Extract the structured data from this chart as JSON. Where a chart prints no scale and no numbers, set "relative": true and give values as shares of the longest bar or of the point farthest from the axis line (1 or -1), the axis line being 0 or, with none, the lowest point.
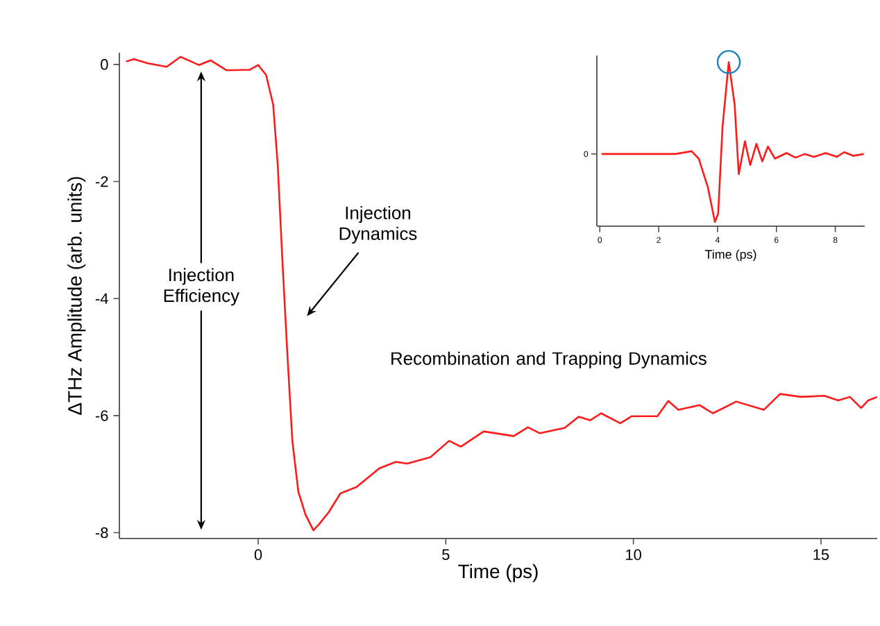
{
  "chart_data": [
    {
      "type": "line",
      "xlabel": "Time (ps)",
      "ylabel": "ΔTHz Amplitude (arb. units)",
      "xlim": [
        -3.7,
        16.5
      ],
      "ylim": [
        -8.1,
        0.2
      ],
      "xticks": [
        0,
        5,
        10,
        15
      ],
      "yticks": [
        -8,
        -6,
        -4,
        -2,
        0
      ],
      "grid": false,
      "annotations": [
        "Injection Efficiency",
        "Injection Dynamics",
        "Recombination and Trapping Dynamics"
      ],
      "series": [
        {
          "color": "#ff1a1a",
          "x": [
            -3.52,
            -3.31,
            -2.94,
            -2.44,
            -2.07,
            -1.58,
            -1.27,
            -0.84,
            -0.22,
            0,
            0.21,
            0.4,
            0.52,
            0.64,
            0.77,
            0.91,
            1.07,
            1.26,
            1.47,
            1.63,
            1.88,
            2.19,
            2.62,
            3.23,
            3.67,
            3.97,
            4.59,
            5.09,
            5.4,
            6.01,
            6.81,
            7.19,
            7.5,
            8.17,
            8.54,
            8.85,
            9.14,
            9.65,
            9.96,
            10.64,
            10.93,
            11.2,
            11.76,
            12.12,
            12.74,
            13.48,
            13.91,
            14.47,
            15.09,
            15.46,
            15.77,
            16.07,
            16.26,
            16.5
          ],
          "values": [
            0.05,
            0.09,
            0.02,
            -0.04,
            0.13,
            -0.01,
            0.07,
            -0.1,
            -0.09,
            -0.01,
            -0.18,
            -0.69,
            -1.71,
            -3.29,
            -4.86,
            -6.43,
            -7.3,
            -7.69,
            -7.96,
            -7.85,
            -7.65,
            -7.33,
            -7.22,
            -6.9,
            -6.79,
            -6.82,
            -6.71,
            -6.43,
            -6.53,
            -6.27,
            -6.35,
            -6.2,
            -6.3,
            -6.21,
            -6.02,
            -6.08,
            -5.96,
            -6.13,
            -6.01,
            -6.01,
            -5.75,
            -5.9,
            -5.82,
            -5.96,
            -5.76,
            -5.9,
            -5.63,
            -5.68,
            -5.66,
            -5.74,
            -5.68,
            -5.87,
            -5.74,
            -5.68
          ]
        }
      ]
    },
    {
      "type": "line",
      "xlabel": "Time (ps)",
      "relative": true,
      "xlim": [
        -0.1,
        9
      ],
      "xticks": [
        0,
        2,
        4,
        6,
        8
      ],
      "annotations": [
        "0"
      ],
      "grid": false,
      "series": [
        {
          "color": "#ff1a1a",
          "x": [
            0.06,
            1.63,
            2.57,
            3.12,
            3.36,
            3.67,
            3.91,
            4.02,
            4.17,
            4.38,
            4.58,
            4.72,
            4.93,
            5.11,
            5.32,
            5.52,
            5.71,
            5.95,
            6.34,
            6.65,
            6.96,
            7.28,
            7.67,
            8.06,
            8.3,
            8.61,
            8.97
          ],
          "values": [
            0.44,
            0.44,
            0.44,
            0.457,
            0.412,
            0.238,
            0.026,
            0.076,
            0.608,
            1,
            0.742,
            0.317,
            0.518,
            0.373,
            0.502,
            0.395,
            0.485,
            0.412,
            0.446,
            0.418,
            0.44,
            0.423,
            0.446,
            0.423,
            0.451,
            0.429,
            0.44
          ]
        }
      ]
    }
  ]
}
